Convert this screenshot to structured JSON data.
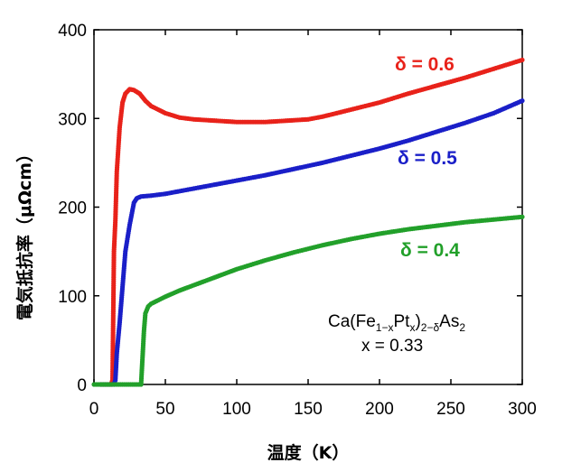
{
  "chart_data": {
    "type": "scatter",
    "xlabel": "温度（K）",
    "ylabel": "電気抵抗率（μΩcm）",
    "xlim": [
      0,
      300
    ],
    "ylim": [
      0,
      400
    ],
    "xticks": [
      "0",
      "50",
      "100",
      "150",
      "200",
      "250",
      "300"
    ],
    "yticks": [
      "0",
      "100",
      "200",
      "300",
      "400"
    ],
    "grid": false,
    "annotation": {
      "formula": {
        "base": "Ca(Fe",
        "sub1": "1−x",
        "mid": "Pt",
        "sub2": "x",
        "close": ")",
        "sub3": "2−δ",
        "end": "As",
        "sub4": "2"
      },
      "x_eq": "x = 0.33"
    },
    "series": [
      {
        "name": "δ = 0.6",
        "label": "δ = 0.6",
        "color": "#e8221a",
        "x": [
          5,
          12,
          13,
          14,
          15,
          16,
          18,
          20,
          22,
          25,
          28,
          32,
          36,
          40,
          50,
          60,
          70,
          80,
          90,
          100,
          110,
          120,
          130,
          140,
          150,
          160,
          170,
          180,
          190,
          200,
          220,
          240,
          260,
          280,
          300
        ],
        "y": [
          0,
          0,
          5,
          150,
          185,
          240,
          290,
          318,
          328,
          333,
          332,
          328,
          320,
          314,
          306,
          301,
          299,
          298,
          297,
          296,
          296,
          296,
          297,
          298,
          299,
          302,
          306,
          310,
          314,
          318,
          328,
          337,
          346,
          356,
          366
        ]
      },
      {
        "name": "δ = 0.5",
        "label": "δ = 0.5",
        "color": "#1a1fc8",
        "x": [
          5,
          14,
          15,
          16,
          18,
          20,
          22,
          25,
          28,
          30,
          33,
          40,
          50,
          60,
          70,
          80,
          90,
          100,
          120,
          140,
          160,
          180,
          200,
          220,
          240,
          260,
          280,
          300
        ],
        "y": [
          0,
          0,
          5,
          35,
          70,
          110,
          150,
          180,
          205,
          210,
          212,
          213,
          215,
          218,
          221,
          224,
          227,
          230,
          236,
          243,
          250,
          258,
          266,
          275,
          285,
          295,
          306,
          320
        ]
      },
      {
        "name": "δ = 0.4",
        "label": "δ = 0.4",
        "color": "#22a02a",
        "x": [
          0,
          10,
          20,
          30,
          33,
          34,
          35,
          36,
          38,
          40,
          45,
          50,
          60,
          70,
          80,
          90,
          100,
          120,
          140,
          160,
          180,
          200,
          220,
          240,
          260,
          280,
          300
        ],
        "y": [
          0,
          0,
          0,
          0,
          0,
          30,
          60,
          80,
          88,
          91,
          95,
          99,
          106,
          112,
          118,
          124,
          130,
          140,
          149,
          157,
          164,
          170,
          175,
          179,
          183,
          186,
          189
        ]
      }
    ]
  }
}
